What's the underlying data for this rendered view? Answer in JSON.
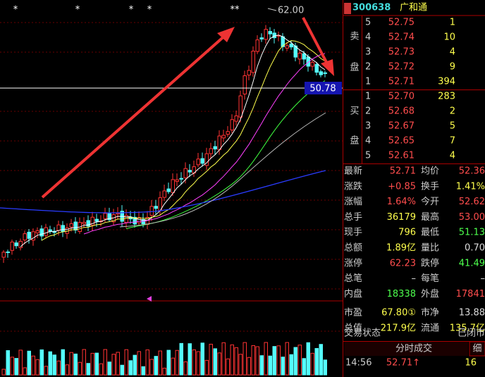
{
  "chart": {
    "stars": [
      "*",
      "*",
      "*",
      "*",
      "**"
    ],
    "high_label": "62.00",
    "price_label": "50.78"
  },
  "quote": {
    "code": "300638",
    "name": "广和通",
    "sell_side": [
      "卖",
      "盘"
    ],
    "buy_side": [
      "买",
      "盘"
    ],
    "sell": [
      {
        "level": "5",
        "price": "52.75",
        "vol": "1"
      },
      {
        "level": "4",
        "price": "52.74",
        "vol": "10"
      },
      {
        "level": "3",
        "price": "52.73",
        "vol": "4"
      },
      {
        "level": "2",
        "price": "52.72",
        "vol": "9"
      },
      {
        "level": "1",
        "price": "52.71",
        "vol": "394"
      }
    ],
    "buy": [
      {
        "level": "1",
        "price": "52.70",
        "vol": "283"
      },
      {
        "level": "2",
        "price": "52.68",
        "vol": "2"
      },
      {
        "level": "3",
        "price": "52.67",
        "vol": "5"
      },
      {
        "level": "4",
        "price": "52.65",
        "vol": "7"
      },
      {
        "level": "5",
        "price": "52.61",
        "vol": "4"
      }
    ],
    "stats": [
      {
        "l1": "最新",
        "v1": "52.71",
        "c1": "#ff4d4d",
        "l2": "均价",
        "v2": "52.36",
        "c2": "#ff4d4d"
      },
      {
        "l1": "涨跌",
        "v1": "+0.85",
        "c1": "#ff4d4d",
        "l2": "换手",
        "v2": "1.41%",
        "c2": "#ffff4d"
      },
      {
        "l1": "涨幅",
        "v1": "1.64%",
        "c1": "#ff4d4d",
        "l2": "今开",
        "v2": "52.62",
        "c2": "#ff4d4d"
      },
      {
        "l1": "总手",
        "v1": "36179",
        "c1": "#ffff4d",
        "l2": "最高",
        "v2": "53.00",
        "c2": "#ff4d4d"
      },
      {
        "l1": "现手",
        "v1": "796",
        "c1": "#ffff4d",
        "l2": "最低",
        "v2": "51.13",
        "c2": "#4dff4d"
      },
      {
        "l1": "总额",
        "v1": "1.89亿",
        "c1": "#ffff4d",
        "l2": "量比",
        "v2": "0.70",
        "c2": "#dddddd"
      },
      {
        "l1": "涨停",
        "v1": "62.23",
        "c1": "#ff4d4d",
        "l2": "跌停",
        "v2": "41.49",
        "c2": "#4dff4d"
      },
      {
        "l1": "总笔",
        "v1": "–",
        "c1": "#dddddd",
        "l2": "每笔",
        "v2": "–",
        "c2": "#dddddd"
      },
      {
        "l1": "内盘",
        "v1": "18338",
        "c1": "#4dff4d",
        "l2": "外盘",
        "v2": "17841",
        "c2": "#ff4d4d"
      },
      {
        "l1": "市盈",
        "v1": "67.80①",
        "c1": "#ffff4d",
        "l2": "市净",
        "v2": "13.88",
        "c2": "#dddddd"
      },
      {
        "l1": "总值",
        "v1": "217.9亿",
        "c1": "#ffff4d",
        "l2": "流通",
        "v2": "135.7亿",
        "c2": "#ffff4d"
      }
    ],
    "status_label": "交易状态",
    "status": "已闭市",
    "ticks_title": "分时成交",
    "ticks_tab": "细",
    "ticks": [
      {
        "time": "14:56",
        "price": "52.71↑",
        "vol": "16"
      }
    ]
  }
}
